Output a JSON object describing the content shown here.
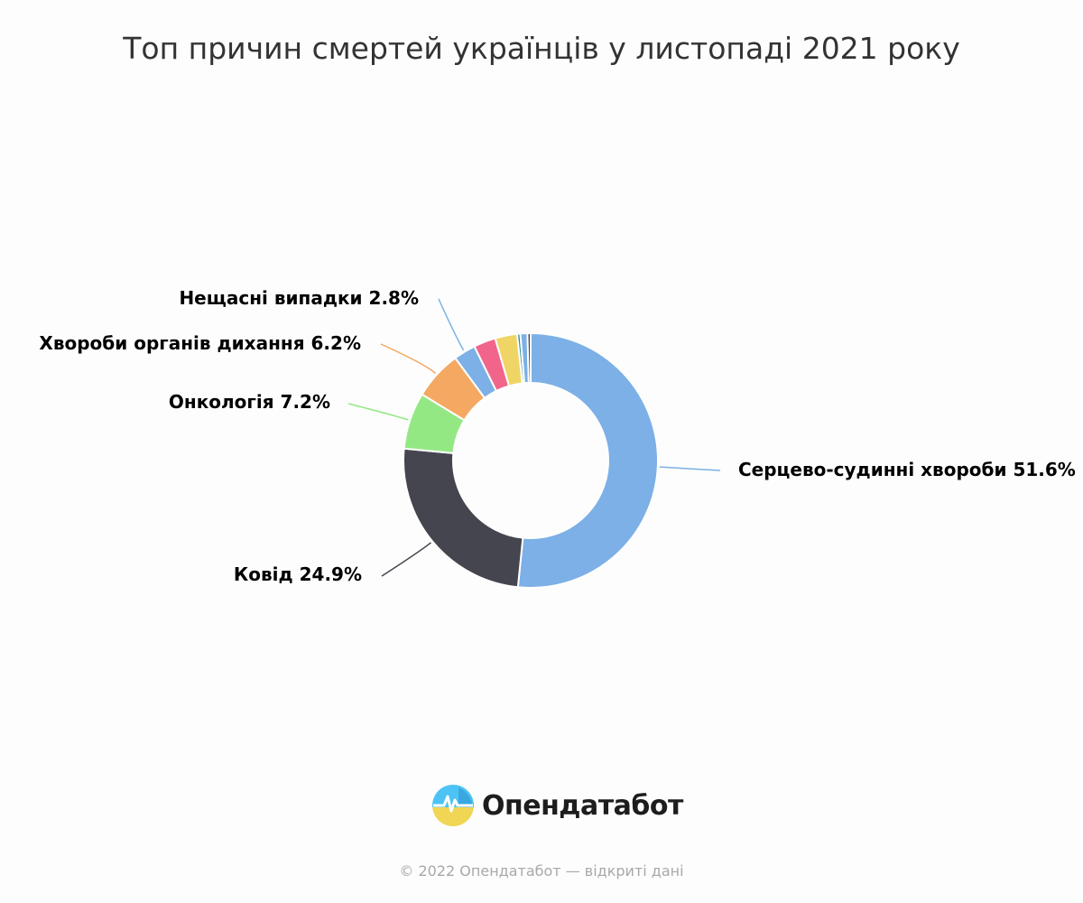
{
  "chart_data": {
    "type": "pie",
    "variant": "donut",
    "title": "Топ причин смертей українців у листопаді 2021 року",
    "legend": "none",
    "slices": [
      {
        "name": "Серцево-судинні хвороби",
        "value": 51.6,
        "label": "Серцево-судинні хвороби 51.6%",
        "color": "#7cb0e6"
      },
      {
        "name": "Ковід",
        "value": 24.9,
        "label": "Ковід 24.9%",
        "color": "#45454f"
      },
      {
        "name": "Онкологія",
        "value": 7.2,
        "label": "Онкологія 7.2%",
        "color": "#94e884"
      },
      {
        "name": "Хвороби органів дихання",
        "value": 6.2,
        "label": "Хвороби органів дихання 6.2%",
        "color": "#f4a862"
      },
      {
        "name": "Нещасні випадки",
        "value": 2.8,
        "label": "Нещасні випадки 2.8%",
        "color": "#7cb0e6"
      },
      {
        "name": "",
        "value": 2.8,
        "label": "",
        "color": "#f2658a"
      },
      {
        "name": "",
        "value": 2.8,
        "label": "",
        "color": "#efd565"
      },
      {
        "name": "",
        "value": 0.4,
        "label": "",
        "color": "#2b908f"
      },
      {
        "name": "",
        "value": 0.9,
        "label": "",
        "color": "#7cb0e6"
      },
      {
        "name": "",
        "value": 0.4,
        "label": "",
        "color": "#45454f"
      }
    ]
  },
  "branding": {
    "logo_text": "Опендатабот",
    "logo_icon": "opendatabot-logo-icon",
    "logo_colors": [
      "#4cc3f4",
      "#f0d654"
    ]
  },
  "footer": {
    "text": "© 2022 Опендатабот — відкриті дані"
  }
}
